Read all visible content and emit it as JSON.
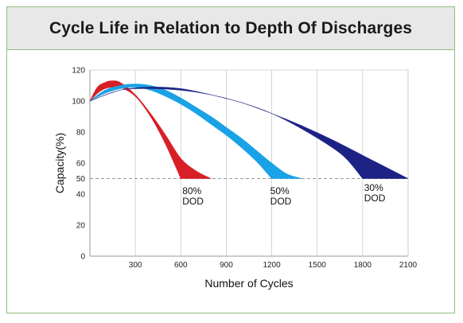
{
  "chart_data": {
    "type": "area",
    "title": "Cycle Life in Relation to Depth Of Discharges",
    "xlabel": "Number of Cycles",
    "ylabel": "Capacity(%)",
    "xlim": [
      0,
      2100
    ],
    "ylim": [
      0,
      120
    ],
    "xticks": [
      300,
      600,
      900,
      1200,
      1500,
      1800,
      2100
    ],
    "xtick_labels": [
      "300",
      "600",
      "900",
      "1200",
      "1500",
      "1800",
      "2100"
    ],
    "yticks": [
      0,
      20,
      40,
      50,
      60,
      80,
      100,
      120
    ],
    "ytick_labels": [
      "0",
      "20",
      "40",
      "50",
      "60",
      "80",
      "100",
      "120"
    ],
    "reference_line": {
      "y": 50,
      "style": "dashed"
    },
    "series": [
      {
        "name": "80% DOD",
        "label_lines": [
          "80%",
          "DOD"
        ],
        "label_at": {
          "x": 610,
          "y": 40
        },
        "color": "#d81f26",
        "upper": {
          "x": [
            0,
            50,
            100,
            140,
            200,
            300,
            400,
            500,
            600,
            700,
            800
          ],
          "y": [
            100,
            109,
            112,
            113,
            112,
            104,
            92,
            78,
            63,
            55,
            50
          ]
        },
        "lower": {
          "x": [
            0,
            50,
            100,
            150,
            200,
            300,
            400,
            500,
            600
          ],
          "y": [
            100,
            105,
            108,
            109,
            109,
            103,
            90,
            72,
            50
          ]
        }
      },
      {
        "name": "50% DOD",
        "label_lines": [
          "50%",
          "DOD"
        ],
        "label_at": {
          "x": 1190,
          "y": 40
        },
        "color": "#1aa2e6",
        "upper": {
          "x": [
            0,
            100,
            200,
            300,
            400,
            500,
            600,
            700,
            800,
            900,
            1000,
            1100,
            1200,
            1300,
            1400
          ],
          "y": [
            100,
            107,
            110,
            111,
            110,
            107,
            102,
            96,
            90,
            83,
            76,
            68,
            60,
            53,
            50
          ]
        },
        "lower": {
          "x": [
            0,
            100,
            200,
            300,
            400,
            500,
            600,
            700,
            800,
            900,
            1000,
            1100,
            1200
          ],
          "y": [
            100,
            105,
            108,
            109,
            107,
            103,
            98,
            92,
            85,
            78,
            70,
            61,
            50
          ]
        }
      },
      {
        "name": "30% DOD",
        "label_lines": [
          "30%",
          "DOD"
        ],
        "label_at": {
          "x": 1810,
          "y": 42
        },
        "color": "#1c2385",
        "upper": {
          "x": [
            0,
            200,
            400,
            600,
            800,
            1000,
            1200,
            1400,
            1600,
            1800,
            2000,
            2100
          ],
          "y": [
            100,
            107,
            109,
            108,
            104,
            99,
            92,
            84,
            75,
            65,
            55,
            50
          ]
        },
        "lower": {
          "x": [
            0,
            200,
            400,
            600,
            800,
            1000,
            1200,
            1400,
            1600,
            1700,
            1800
          ],
          "y": [
            100,
            107,
            108,
            107,
            104,
            99,
            92,
            82,
            70,
            62,
            50
          ]
        }
      }
    ]
  }
}
